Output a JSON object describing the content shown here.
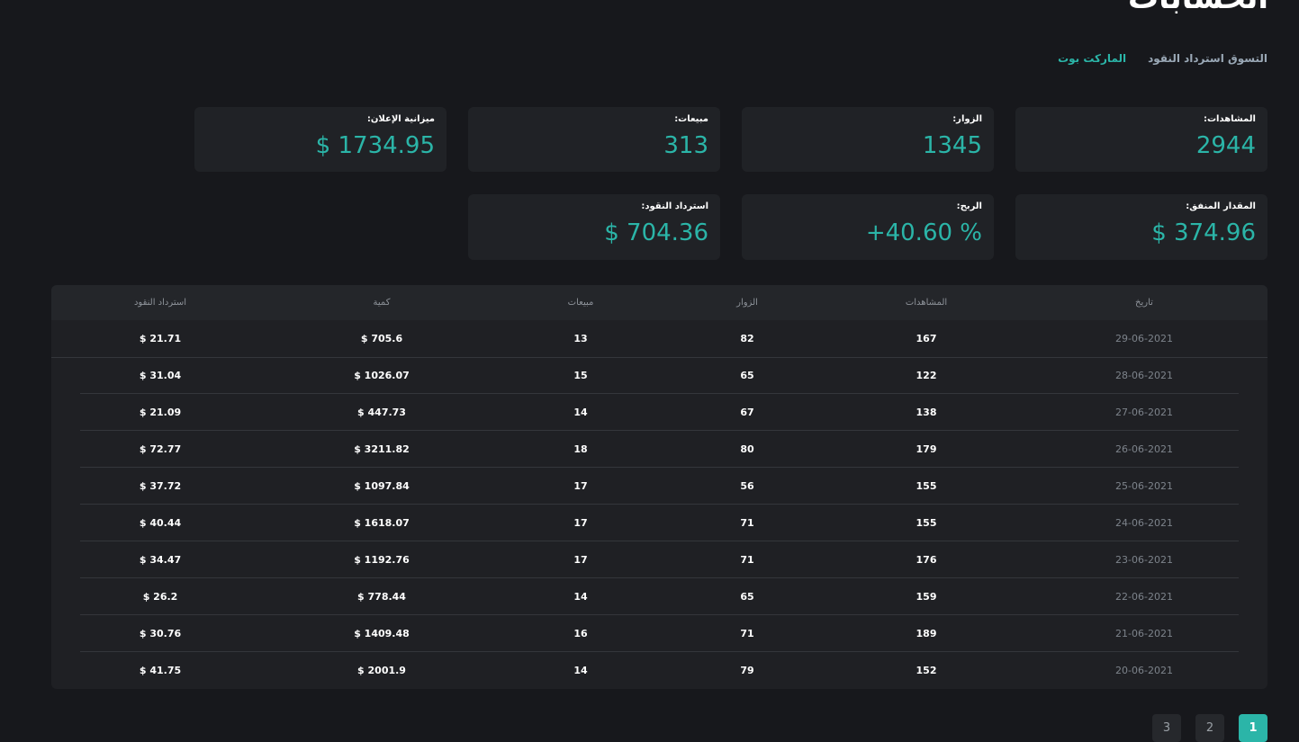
{
  "header": {
    "title": "الحسابات"
  },
  "nav": {
    "links": [
      {
        "label": "الماركت بوت",
        "active": true
      },
      {
        "label": "التسوق استرداد النقود",
        "active": false
      }
    ]
  },
  "stats": {
    "views": {
      "label": "المشاهدات:",
      "value": "2944"
    },
    "visitors": {
      "label": "الزوار:",
      "value": "1345"
    },
    "sales": {
      "label": "مبيعات:",
      "value": "313"
    },
    "ad_budget": {
      "label": "ميزانية الإعلان:",
      "value": "$ 1734.95"
    },
    "spent": {
      "label": "المقدار المنفق:",
      "value": "$ 374.96"
    },
    "profit": {
      "label": "الربح:",
      "value": "+40.60 %"
    },
    "cashback": {
      "label": "استرداد النقود:",
      "value": "$ 704.36"
    }
  },
  "table": {
    "headers": {
      "date": "تاريخ",
      "views": "المشاهدات",
      "visitors": "الزوار",
      "sales": "مبيعات",
      "amount": "كمية",
      "cashback": "استرداد النقود"
    },
    "rows": [
      {
        "date": "29-06-2021",
        "views": "167",
        "visitors": "82",
        "sales": "13",
        "amount": "$ 705.6",
        "cashback": "$ 21.71"
      },
      {
        "date": "28-06-2021",
        "views": "122",
        "visitors": "65",
        "sales": "15",
        "amount": "$ 1026.07",
        "cashback": "$ 31.04"
      },
      {
        "date": "27-06-2021",
        "views": "138",
        "visitors": "67",
        "sales": "14",
        "amount": "$ 447.73",
        "cashback": "$ 21.09"
      },
      {
        "date": "26-06-2021",
        "views": "179",
        "visitors": "80",
        "sales": "18",
        "amount": "$ 3211.82",
        "cashback": "$ 72.77"
      },
      {
        "date": "25-06-2021",
        "views": "155",
        "visitors": "56",
        "sales": "17",
        "amount": "$ 1097.84",
        "cashback": "$ 37.72"
      },
      {
        "date": "24-06-2021",
        "views": "155",
        "visitors": "71",
        "sales": "17",
        "amount": "$ 1618.07",
        "cashback": "$ 40.44"
      },
      {
        "date": "23-06-2021",
        "views": "176",
        "visitors": "71",
        "sales": "17",
        "amount": "$ 1192.76",
        "cashback": "$ 34.47"
      },
      {
        "date": "22-06-2021",
        "views": "159",
        "visitors": "65",
        "sales": "14",
        "amount": "$ 778.44",
        "cashback": "$ 26.2"
      },
      {
        "date": "21-06-2021",
        "views": "189",
        "visitors": "71",
        "sales": "16",
        "amount": "$ 1409.48",
        "cashback": "$ 30.76"
      },
      {
        "date": "20-06-2021",
        "views": "152",
        "visitors": "79",
        "sales": "14",
        "amount": "$ 2001.9",
        "cashback": "$ 41.75"
      }
    ]
  },
  "pagination": {
    "pages": [
      "1",
      "2",
      "3"
    ],
    "current": "1"
  },
  "colors": {
    "accent": "#2bb5a8",
    "background": "#17181c",
    "card": "#202226"
  }
}
